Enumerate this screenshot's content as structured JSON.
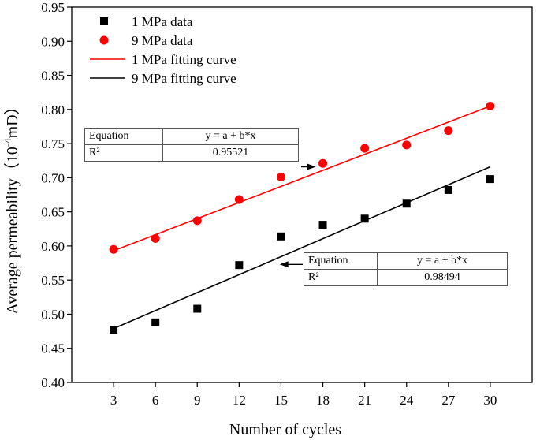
{
  "chart_data": {
    "type": "scatter",
    "title": "",
    "xlabel": "Number of cycles",
    "ylabel": "Average permeability（10",
    "ylabel_superscript": "-4",
    "ylabel_unit": "mD）",
    "xlim": [
      0,
      33
    ],
    "ylim": [
      0.4,
      0.95
    ],
    "x_ticks": [
      3,
      6,
      9,
      12,
      15,
      18,
      21,
      24,
      27,
      30
    ],
    "y_ticks": [
      "0.40",
      "0.45",
      "0.50",
      "0.55",
      "0.60",
      "0.65",
      "0.70",
      "0.75",
      "0.80",
      "0.85",
      "0.90",
      "0.95"
    ],
    "series": [
      {
        "name": "1 MPa data",
        "marker": "square",
        "color": "#000000",
        "x": [
          3,
          6,
          9,
          12,
          15,
          18,
          21,
          24,
          27,
          30
        ],
        "values": [
          0.477,
          0.488,
          0.508,
          0.572,
          0.614,
          0.631,
          0.64,
          0.662,
          0.682,
          0.698
        ]
      },
      {
        "name": "9 MPa data",
        "marker": "circle",
        "color": "#ff0000",
        "x": [
          3,
          6,
          9,
          12,
          15,
          18,
          21,
          24,
          27,
          30
        ],
        "values": [
          0.595,
          0.611,
          0.637,
          0.668,
          0.701,
          0.721,
          0.743,
          0.748,
          0.769,
          0.805
        ]
      }
    ],
    "fits": [
      {
        "name": "1 MPa  fitting curve",
        "color": "#ff0000",
        "x": [
          3,
          30
        ],
        "y": [
          0.593,
          0.805
        ]
      },
      {
        "name": "9 MPa  fitting curve",
        "color": "#000000",
        "x": [
          3,
          30
        ],
        "y": [
          0.479,
          0.716
        ]
      }
    ],
    "legend": [
      {
        "label": "1 MPa data",
        "kind": "square",
        "color": "#000000"
      },
      {
        "label": "9 MPa data",
        "kind": "circle",
        "color": "#ff0000"
      },
      {
        "label": "1 MPa  fitting curve",
        "kind": "line",
        "color": "#ff0000"
      },
      {
        "label": "9 MPa  fitting curve",
        "kind": "line",
        "color": "#000000"
      }
    ],
    "legend_position": "top-left",
    "annotations": [
      {
        "equation_label": "Equation",
        "equation": "y = a + b*x",
        "r2_label": "R²",
        "r2": "0.95521",
        "arrow_to": {
          "x": 17.5,
          "y": 0.716
        }
      },
      {
        "equation_label": "Equation",
        "equation": "y = a + b*x",
        "r2_label": "R²",
        "r2": "0.98494",
        "arrow_to": {
          "x": 14.9,
          "y": 0.573
        }
      }
    ]
  }
}
